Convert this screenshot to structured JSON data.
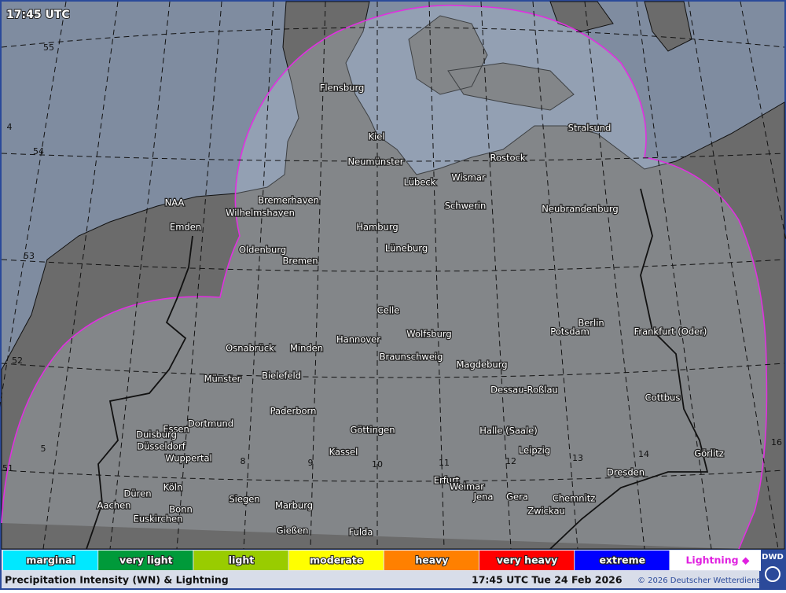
{
  "timestamp": "17:45 UTC",
  "grid_labels": [
    "55",
    "4",
    "54",
    "53",
    "52",
    "5",
    "51",
    "8",
    "9",
    "10",
    "11",
    "12",
    "13",
    "14",
    "16"
  ],
  "cities": [
    "Flensburg",
    "Kiel",
    "Neumünster",
    "Lübeck",
    "Wismar",
    "Rostock",
    "Stralsund",
    "Schwerin",
    "Neubrandenburg",
    "Bremerhaven",
    "Wilhelmshaven",
    "Emden",
    "Hamburg",
    "Oldenburg",
    "Bremen",
    "Lüneburg",
    "Celle",
    "Berlin",
    "Potsdam",
    "Frankfurt (Oder)",
    "Osnabrück",
    "Minden",
    "Hannover",
    "Wolfsburg",
    "Braunschweig",
    "Magdeburg",
    "Münster",
    "Bielefeld",
    "Dessau-Roßlau",
    "Cottbus",
    "Paderborn",
    "Dortmund",
    "Essen",
    "Duisburg",
    "Düsseldorf",
    "Wuppertal",
    "Göttingen",
    "Halle (Saale)",
    "Kassel",
    "Leipzig",
    "Erfurt",
    "Weimar",
    "Jena",
    "Gera",
    "Chemnitz",
    "Köln",
    "Aachen",
    "Düren",
    "Bonn",
    "Siegen",
    "Marburg",
    "Euskirchen",
    "Zwickau",
    "Dresden",
    "Görlitz",
    "Gießen",
    "Fulda",
    "NAA"
  ],
  "legend": [
    {
      "label": "marginal",
      "color": "#00e8ff"
    },
    {
      "label": "very light",
      "color": "#009a3a"
    },
    {
      "label": "light",
      "color": "#99cc00"
    },
    {
      "label": "moderate",
      "color": "#ffff00"
    },
    {
      "label": "heavy",
      "color": "#ff8000"
    },
    {
      "label": "very heavy",
      "color": "#ff0000"
    },
    {
      "label": "extreme",
      "color": "#0000ff"
    },
    {
      "label": "Lightning ◆",
      "color": "#e020e0"
    }
  ],
  "footer": {
    "product": "Precipitation Intensity (WN) & Lightning",
    "time": "17:45 UTC Tue 24 Feb 2026",
    "copyright": "© 2026 Deutscher Wetterdienst",
    "logo": "DWD"
  }
}
